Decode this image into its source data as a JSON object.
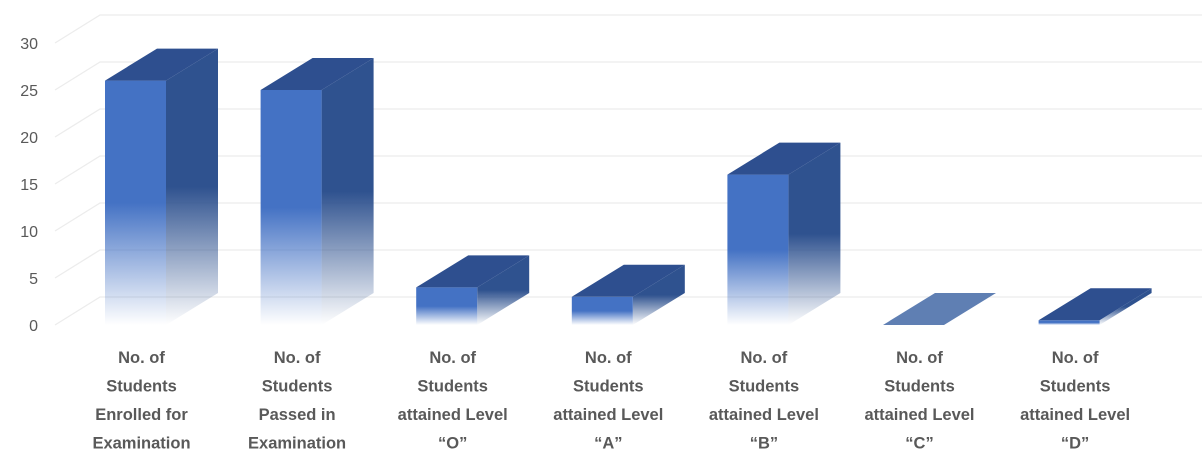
{
  "chart_data": {
    "type": "bar",
    "style": "3d-column",
    "categories": [
      [
        "No. of",
        "Students",
        "Enrolled for",
        "Examination"
      ],
      [
        "No. of",
        "Students",
        "Passed in",
        "Examination"
      ],
      [
        "No. of",
        "Students",
        "attained Level",
        "“O”"
      ],
      [
        "No. of",
        "Students",
        "attained Level",
        "“A”"
      ],
      [
        "No. of",
        "Students",
        "attained Level",
        "“B”"
      ],
      [
        "No. of",
        "Students",
        "attained Level",
        "“C”"
      ],
      [
        "No. of",
        "Students",
        "attained Level",
        "“D”"
      ]
    ],
    "values": [
      26,
      25,
      4,
      3,
      16,
      0,
      0.5
    ],
    "y_ticks": [
      "0",
      "5",
      "10",
      "15",
      "20",
      "25",
      "30"
    ],
    "ylim": [
      0,
      30
    ],
    "grid": true,
    "legend": "none",
    "colors": {
      "front": "#4472c4",
      "side": "#2f528f",
      "top": "#2e4f8f",
      "empty_top": "#5f7fb3",
      "grid": "#ececec",
      "text": "#595959"
    }
  }
}
